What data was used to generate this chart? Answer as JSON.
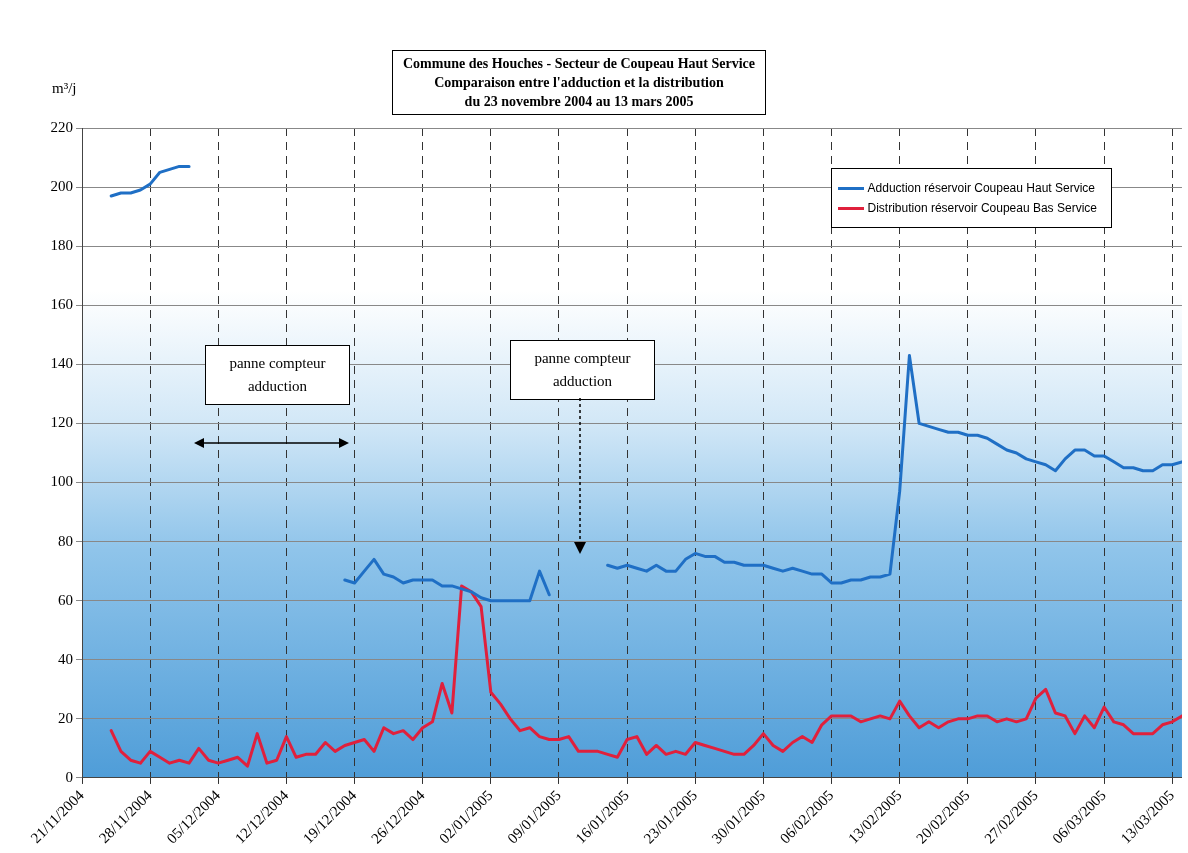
{
  "chart_data": {
    "type": "line",
    "title": "Commune des Houches - Secteur de Coupeau Haut Service\nComparaison entre l'adduction et la distribution\ndu 23 novembre 2004 au 13 mars 2005",
    "ylabel": "m³/j",
    "annotations": [
      "panne compteur adduction",
      "panne compteur adduction"
    ],
    "x": [
      "2004-11-24",
      "2004-11-25",
      "2004-11-26",
      "2004-11-27",
      "2004-11-28",
      "2004-11-29",
      "2004-11-30",
      "2004-12-01",
      "2004-12-02",
      "2004-12-03",
      "2004-12-04",
      "2004-12-05",
      "2004-12-06",
      "2004-12-07",
      "2004-12-08",
      "2004-12-09",
      "2004-12-10",
      "2004-12-11",
      "2004-12-12",
      "2004-12-13",
      "2004-12-14",
      "2004-12-15",
      "2004-12-16",
      "2004-12-17",
      "2004-12-18",
      "2004-12-19",
      "2004-12-20",
      "2004-12-21",
      "2004-12-22",
      "2004-12-23",
      "2004-12-24",
      "2004-12-25",
      "2004-12-26",
      "2004-12-27",
      "2004-12-28",
      "2004-12-29",
      "2004-12-30",
      "2004-12-31",
      "2005-01-01",
      "2005-01-02",
      "2005-01-03",
      "2005-01-04",
      "2005-01-05",
      "2005-01-06",
      "2005-01-07",
      "2005-01-08",
      "2005-01-09",
      "2005-01-10",
      "2005-01-11",
      "2005-01-12",
      "2005-01-13",
      "2005-01-14",
      "2005-01-15",
      "2005-01-16",
      "2005-01-17",
      "2005-01-18",
      "2005-01-19",
      "2005-01-20",
      "2005-01-21",
      "2005-01-22",
      "2005-01-23",
      "2005-01-24",
      "2005-01-25",
      "2005-01-26",
      "2005-01-27",
      "2005-01-28",
      "2005-01-29",
      "2005-01-30",
      "2005-01-31",
      "2005-02-01",
      "2005-02-02",
      "2005-02-03",
      "2005-02-04",
      "2005-02-05",
      "2005-02-06",
      "2005-02-07",
      "2005-02-08",
      "2005-02-09",
      "2005-02-10",
      "2005-02-11",
      "2005-02-12",
      "2005-02-13",
      "2005-02-14",
      "2005-02-15",
      "2005-02-16",
      "2005-02-17",
      "2005-02-18",
      "2005-02-19",
      "2005-02-20",
      "2005-02-21",
      "2005-02-22",
      "2005-02-23",
      "2005-02-24",
      "2005-02-25",
      "2005-02-26",
      "2005-02-27",
      "2005-02-28",
      "2005-03-01",
      "2005-03-02",
      "2005-03-03",
      "2005-03-04",
      "2005-03-05",
      "2005-03-06",
      "2005-03-07",
      "2005-03-08",
      "2005-03-09",
      "2005-03-10",
      "2005-03-11",
      "2005-03-12",
      "2005-03-13",
      "2005-03-14"
    ],
    "series": [
      {
        "name": "Adduction réservoir Coupeau Haut Service",
        "color": "#1f6fc5",
        "values": [
          197,
          198,
          198,
          199,
          201,
          205,
          206,
          207,
          207,
          null,
          null,
          null,
          null,
          null,
          null,
          null,
          null,
          null,
          null,
          null,
          null,
          null,
          null,
          null,
          67,
          66,
          70,
          74,
          69,
          68,
          66,
          67,
          67,
          67,
          65,
          65,
          64,
          63,
          61,
          60,
          60,
          60,
          60,
          60,
          70,
          62,
          null,
          null,
          null,
          null,
          null,
          72,
          71,
          72,
          71,
          70,
          72,
          70,
          70,
          74,
          76,
          75,
          75,
          73,
          73,
          72,
          72,
          72,
          71,
          70,
          71,
          70,
          69,
          69,
          66,
          66,
          67,
          67,
          68,
          68,
          69,
          97,
          143,
          120,
          119,
          118,
          117,
          117,
          116,
          116,
          115,
          113,
          111,
          110,
          108,
          107,
          106,
          104,
          108,
          111,
          111,
          109,
          109,
          107,
          105,
          105,
          104,
          104,
          106,
          106,
          107
        ]
      },
      {
        "name": "Distribution réservoir Coupeau Bas Service",
        "color": "#e0203c",
        "values": [
          16,
          9,
          6,
          5,
          9,
          7,
          5,
          6,
          5,
          10,
          6,
          5,
          6,
          7,
          4,
          15,
          5,
          6,
          14,
          7,
          8,
          8,
          12,
          9,
          11,
          12,
          13,
          9,
          17,
          15,
          16,
          13,
          17,
          19,
          32,
          22,
          65,
          63,
          58,
          29,
          25,
          20,
          16,
          17,
          14,
          13,
          13,
          14,
          9,
          9,
          9,
          8,
          7,
          13,
          14,
          8,
          11,
          8,
          9,
          8,
          12,
          11,
          10,
          9,
          8,
          8,
          11,
          15,
          11,
          9,
          12,
          14,
          12,
          18,
          21,
          21,
          21,
          19,
          20,
          21,
          20,
          26,
          21,
          17,
          19,
          17,
          19,
          20,
          20,
          21,
          21,
          19,
          20,
          19,
          20,
          27,
          30,
          22,
          21,
          15,
          21,
          17,
          24,
          19,
          18,
          15,
          15,
          15,
          18,
          19,
          21
        ]
      }
    ],
    "xlim": [
      "2004-11-21",
      "2005-03-14"
    ],
    "xticks": [
      {
        "value": "2004-11-21",
        "label": "21/11/2004"
      },
      {
        "value": "2004-11-28",
        "label": "28/11/2004"
      },
      {
        "value": "2004-12-05",
        "label": "05/12/2004"
      },
      {
        "value": "2004-12-12",
        "label": "12/12/2004"
      },
      {
        "value": "2004-12-19",
        "label": "19/12/2004"
      },
      {
        "value": "2004-12-26",
        "label": "26/12/2004"
      },
      {
        "value": "2005-01-02",
        "label": "02/01/2005"
      },
      {
        "value": "2005-01-09",
        "label": "09/01/2005"
      },
      {
        "value": "2005-01-16",
        "label": "16/01/2005"
      },
      {
        "value": "2005-01-23",
        "label": "23/01/2005"
      },
      {
        "value": "2005-01-30",
        "label": "30/01/2005"
      },
      {
        "value": "2005-02-06",
        "label": "06/02/2005"
      },
      {
        "value": "2005-02-13",
        "label": "13/02/2005"
      },
      {
        "value": "2005-02-20",
        "label": "20/02/2005"
      },
      {
        "value": "2005-02-27",
        "label": "27/02/2005"
      },
      {
        "value": "2005-03-06",
        "label": "06/03/2005"
      },
      {
        "value": "2005-03-13",
        "label": "13/03/2005"
      }
    ],
    "ylim": [
      0,
      220
    ],
    "yticks": [
      0,
      20,
      40,
      60,
      80,
      100,
      120,
      140,
      160,
      180,
      200,
      220
    ],
    "grid": true,
    "legend": "top right",
    "marker": "none",
    "line_style": "solid"
  }
}
